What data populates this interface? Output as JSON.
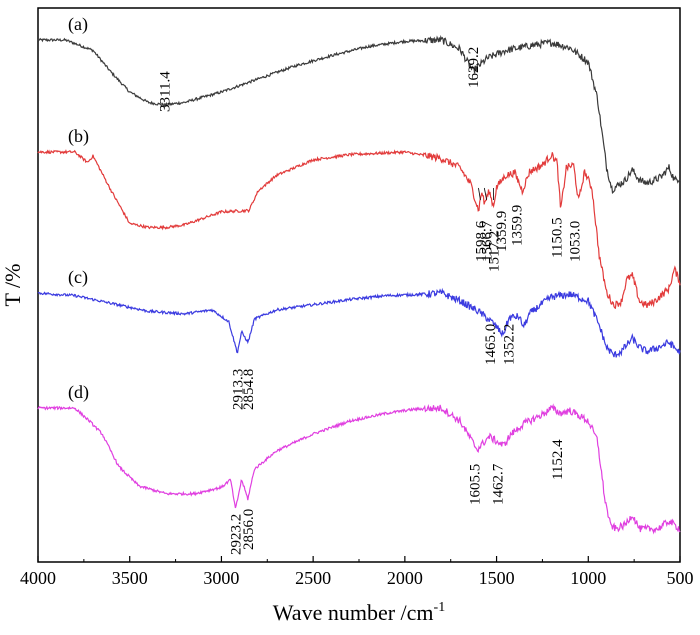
{
  "chart_data": {
    "type": "line",
    "title": "",
    "xlabel": "Wave number /cm",
    "xlabel_superscript": "-1",
    "ylabel": "T /%",
    "xlim": [
      4000,
      500
    ],
    "x_reversed": true,
    "x_ticks": [
      "4000",
      "3500",
      "3000",
      "2500",
      "2000",
      "1500",
      "1000",
      "500"
    ],
    "y_ticks_shown": false,
    "grid": false,
    "series": [
      {
        "name": "(a)",
        "color": "#3a3a3a",
        "points": [
          [
            4000,
            0.0
          ],
          [
            3850,
            0.0
          ],
          [
            3700,
            -0.8
          ],
          [
            3600,
            -2.5
          ],
          [
            3500,
            -4.0
          ],
          [
            3400,
            -4.8
          ],
          [
            3311.4,
            -5.0
          ],
          [
            3200,
            -4.8
          ],
          [
            3000,
            -4.0
          ],
          [
            2800,
            -3.0
          ],
          [
            2600,
            -2.0
          ],
          [
            2400,
            -1.2
          ],
          [
            2200,
            -0.5
          ],
          [
            2000,
            -0.1
          ],
          [
            1800,
            0.0
          ],
          [
            1700,
            -0.7
          ],
          [
            1629.2,
            -2.4
          ],
          [
            1550,
            -1.4
          ],
          [
            1450,
            -0.8
          ],
          [
            1300,
            -0.4
          ],
          [
            1200,
            -0.2
          ],
          [
            1100,
            -0.6
          ],
          [
            1000,
            -1.7
          ],
          [
            950,
            -4.5
          ],
          [
            900,
            -9.8
          ],
          [
            870,
            -11.5
          ],
          [
            840,
            -11.2
          ],
          [
            800,
            -10.8
          ],
          [
            760,
            -10.0
          ],
          [
            720,
            -10.8
          ],
          [
            680,
            -11.0
          ],
          [
            640,
            -10.8
          ],
          [
            600,
            -10.5
          ],
          [
            560,
            -9.8
          ],
          [
            530,
            -10.8
          ],
          [
            500,
            -10.6
          ]
        ],
        "annotations": [
          "3311.4",
          "1629.2"
        ]
      },
      {
        "name": "(b)",
        "color": "#e23b3b",
        "points": [
          [
            4000,
            0.0
          ],
          [
            3800,
            0.0
          ],
          [
            3730,
            -0.8
          ],
          [
            3700,
            -0.3
          ],
          [
            3600,
            -3.0
          ],
          [
            3500,
            -5.5
          ],
          [
            3400,
            -5.8
          ],
          [
            3300,
            -5.8
          ],
          [
            3200,
            -5.6
          ],
          [
            3000,
            -4.6
          ],
          [
            2850,
            -4.5
          ],
          [
            2800,
            -3.0
          ],
          [
            2700,
            -1.8
          ],
          [
            2500,
            -0.6
          ],
          [
            2300,
            -0.2
          ],
          [
            2000,
            0.0
          ],
          [
            1800,
            -0.5
          ],
          [
            1700,
            -1.2
          ],
          [
            1640,
            -2.5
          ],
          [
            1598.6,
            -4.5
          ],
          [
            1580,
            -3.0
          ],
          [
            1566.7,
            -4.0
          ],
          [
            1540,
            -3.0
          ],
          [
            1517.2,
            -4.2
          ],
          [
            1500,
            -2.7
          ],
          [
            1450,
            -1.8
          ],
          [
            1400,
            -1.6
          ],
          [
            1359.9,
            -3.0
          ],
          [
            1320,
            -1.5
          ],
          [
            1250,
            -1.0
          ],
          [
            1200,
            -0.2
          ],
          [
            1170,
            -0.8
          ],
          [
            1150.5,
            -4.5
          ],
          [
            1120,
            -1.2
          ],
          [
            1080,
            -1.0
          ],
          [
            1053,
            -3.8
          ],
          [
            1020,
            -1.5
          ],
          [
            980,
            -2.8
          ],
          [
            940,
            -8.0
          ],
          [
            900,
            -10.8
          ],
          [
            860,
            -11.8
          ],
          [
            820,
            -11.5
          ],
          [
            790,
            -9.8
          ],
          [
            760,
            -9.5
          ],
          [
            720,
            -11.5
          ],
          [
            680,
            -11.8
          ],
          [
            640,
            -11.5
          ],
          [
            600,
            -11.0
          ],
          [
            560,
            -10.5
          ],
          [
            530,
            -9.0
          ],
          [
            500,
            -10.0
          ]
        ],
        "annotations": [
          "1598.6",
          "1566.7",
          "1517.2",
          "1359.9",
          "1359.9",
          "1150.5",
          "1053.0"
        ]
      },
      {
        "name": "(c)",
        "color": "#3b3be0",
        "points": [
          [
            4000,
            0.0
          ],
          [
            3800,
            -0.2
          ],
          [
            3600,
            -0.8
          ],
          [
            3400,
            -1.4
          ],
          [
            3200,
            -1.6
          ],
          [
            3050,
            -1.3
          ],
          [
            2960,
            -2.2
          ],
          [
            2913.3,
            -4.6
          ],
          [
            2890,
            -3.0
          ],
          [
            2854.8,
            -3.8
          ],
          [
            2820,
            -2.0
          ],
          [
            2700,
            -1.3
          ],
          [
            2500,
            -0.9
          ],
          [
            2300,
            -0.5
          ],
          [
            2100,
            -0.2
          ],
          [
            1900,
            -0.1
          ],
          [
            1800,
            0.0
          ],
          [
            1700,
            -0.6
          ],
          [
            1600,
            -1.4
          ],
          [
            1520,
            -2.3
          ],
          [
            1465,
            -3.2
          ],
          [
            1430,
            -1.9
          ],
          [
            1380,
            -1.8
          ],
          [
            1352.2,
            -2.6
          ],
          [
            1320,
            -1.6
          ],
          [
            1250,
            -0.8
          ],
          [
            1200,
            -0.3
          ],
          [
            1100,
            -0.1
          ],
          [
            1000,
            -0.6
          ],
          [
            940,
            -2.5
          ],
          [
            900,
            -4.2
          ],
          [
            860,
            -4.8
          ],
          [
            820,
            -4.5
          ],
          [
            760,
            -3.5
          ],
          [
            720,
            -4.2
          ],
          [
            680,
            -4.5
          ],
          [
            620,
            -4.2
          ],
          [
            560,
            -3.8
          ],
          [
            530,
            -4.2
          ],
          [
            500,
            -4.6
          ]
        ],
        "annotations": [
          "2913.3",
          "2854.8",
          "1465.0",
          "1352.2"
        ]
      },
      {
        "name": "(d)",
        "color": "#e040e0",
        "points": [
          [
            4000,
            0.0
          ],
          [
            3800,
            0.0
          ],
          [
            3720,
            -1.0
          ],
          [
            3650,
            -2.0
          ],
          [
            3560,
            -4.5
          ],
          [
            3450,
            -6.0
          ],
          [
            3300,
            -6.6
          ],
          [
            3150,
            -6.6
          ],
          [
            3000,
            -6.1
          ],
          [
            2950,
            -5.5
          ],
          [
            2923.2,
            -7.8
          ],
          [
            2890,
            -5.5
          ],
          [
            2856,
            -7.0
          ],
          [
            2820,
            -4.7
          ],
          [
            2700,
            -3.3
          ],
          [
            2500,
            -2.0
          ],
          [
            2300,
            -1.0
          ],
          [
            2100,
            -0.4
          ],
          [
            1950,
            -0.1
          ],
          [
            1800,
            0.0
          ],
          [
            1700,
            -1.0
          ],
          [
            1605.5,
            -3.2
          ],
          [
            1540,
            -2.2
          ],
          [
            1462.7,
            -2.9
          ],
          [
            1420,
            -2.0
          ],
          [
            1350,
            -1.2
          ],
          [
            1250,
            -0.5
          ],
          [
            1200,
            0.0
          ],
          [
            1152.4,
            -0.4
          ],
          [
            1100,
            -0.2
          ],
          [
            1000,
            -1.0
          ],
          [
            950,
            -2.5
          ],
          [
            910,
            -7.0
          ],
          [
            880,
            -9.0
          ],
          [
            850,
            -9.3
          ],
          [
            800,
            -9.0
          ],
          [
            760,
            -8.2
          ],
          [
            720,
            -9.3
          ],
          [
            680,
            -9.3
          ],
          [
            620,
            -9.3
          ],
          [
            560,
            -8.7
          ],
          [
            530,
            -9.0
          ],
          [
            500,
            -9.3
          ]
        ],
        "annotations": [
          "2923.2",
          "2856.0",
          "1605.5",
          "1462.7",
          "1152.4"
        ]
      }
    ]
  }
}
